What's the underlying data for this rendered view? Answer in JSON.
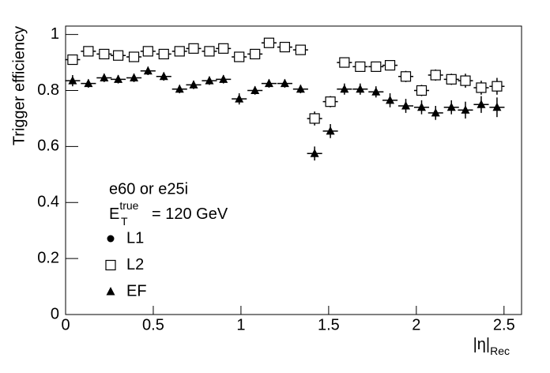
{
  "chart_data": {
    "type": "scatter",
    "ylabel": "Trigger efficiency",
    "xlabel": {
      "base": "|η|",
      "sub": "Rec"
    },
    "annotations": [
      "e60 or e25i",
      {
        "base": "E",
        "sub": "T",
        "sup": "true",
        "rest": "= 120 GeV"
      }
    ],
    "x": [
      0.04,
      0.13,
      0.22,
      0.3,
      0.39,
      0.47,
      0.56,
      0.65,
      0.73,
      0.82,
      0.9,
      0.99,
      1.08,
      1.16,
      1.25,
      1.34,
      1.42,
      1.51,
      1.59,
      1.68,
      1.77,
      1.85,
      1.94,
      2.03,
      2.11,
      2.2,
      2.28,
      2.37,
      2.46
    ],
    "xerr": 0.043,
    "series": [
      {
        "name": "L1",
        "marker": "circle",
        "color": "#000000",
        "values": [
          null,
          null,
          null,
          null,
          null,
          null,
          null,
          null,
          null,
          null,
          null,
          null,
          null,
          null,
          null,
          null,
          null,
          null,
          null,
          null,
          null,
          null,
          null,
          null,
          null,
          null,
          null,
          null,
          null
        ],
        "errors": [
          null,
          null,
          null,
          null,
          null,
          null,
          null,
          null,
          null,
          null,
          null,
          null,
          null,
          null,
          null,
          null,
          null,
          null,
          null,
          null,
          null,
          null,
          null,
          null,
          null,
          null,
          null,
          null,
          null
        ]
      },
      {
        "name": "L2",
        "marker": "open-square",
        "color": "#000000",
        "values": [
          0.91,
          0.94,
          0.93,
          0.925,
          0.92,
          0.94,
          0.93,
          0.94,
          0.95,
          0.94,
          0.95,
          0.92,
          0.93,
          0.97,
          0.955,
          0.945,
          0.7,
          0.76,
          0.9,
          0.885,
          0.885,
          0.89,
          0.85,
          0.8,
          0.855,
          0.84,
          0.835,
          0.81,
          0.815
        ],
        "errors": [
          0.015,
          0.01,
          0.01,
          0.01,
          0.01,
          0.01,
          0.01,
          0.01,
          0.01,
          0.01,
          0.01,
          0.015,
          0.01,
          0.01,
          0.01,
          0.01,
          0.025,
          0.02,
          0.015,
          0.015,
          0.015,
          0.015,
          0.02,
          0.02,
          0.02,
          0.02,
          0.025,
          0.025,
          0.03
        ]
      },
      {
        "name": "EF",
        "marker": "triangle",
        "color": "#000000",
        "values": [
          0.835,
          0.825,
          0.845,
          0.84,
          0.845,
          0.87,
          0.85,
          0.805,
          0.82,
          0.835,
          0.84,
          0.77,
          0.8,
          0.825,
          0.825,
          0.805,
          0.575,
          0.655,
          0.805,
          0.805,
          0.795,
          0.765,
          0.745,
          0.74,
          0.72,
          0.74,
          0.73,
          0.75,
          0.74
        ],
        "errors": [
          0.02,
          0.015,
          0.015,
          0.015,
          0.015,
          0.015,
          0.015,
          0.015,
          0.015,
          0.015,
          0.015,
          0.02,
          0.015,
          0.015,
          0.015,
          0.015,
          0.025,
          0.025,
          0.02,
          0.02,
          0.02,
          0.025,
          0.025,
          0.025,
          0.025,
          0.025,
          0.03,
          0.03,
          0.035
        ]
      }
    ],
    "xlim": [
      0,
      2.6
    ],
    "ylim": [
      0,
      1.03
    ],
    "xticks": [
      0,
      0.5,
      1,
      1.5,
      2,
      2.5
    ],
    "yticks": [
      0,
      0.2,
      0.4,
      0.6,
      0.8,
      1
    ],
    "grid": false
  }
}
